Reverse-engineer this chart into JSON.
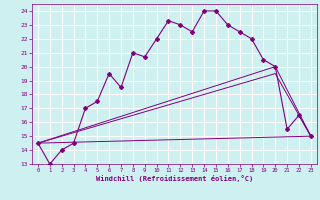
{
  "xlabel": "Windchill (Refroidissement éolien,°C)",
  "background_color": "#cff0f0",
  "grid_color": "#ffffff",
  "line_color": "#800080",
  "xlim": [
    -0.5,
    23.5
  ],
  "ylim": [
    13,
    24.5
  ],
  "yticks": [
    13,
    14,
    15,
    16,
    17,
    18,
    19,
    20,
    21,
    22,
    23,
    24
  ],
  "xticks": [
    0,
    1,
    2,
    3,
    4,
    5,
    6,
    7,
    8,
    9,
    10,
    11,
    12,
    13,
    14,
    15,
    16,
    17,
    18,
    19,
    20,
    21,
    22,
    23
  ],
  "curve1_x": [
    0,
    1,
    2,
    3,
    4,
    5,
    6,
    7,
    8,
    9,
    10,
    11,
    12,
    13,
    14,
    15,
    16,
    17,
    18,
    19,
    20,
    21,
    22,
    23
  ],
  "curve1_y": [
    14.5,
    13.0,
    14.0,
    14.5,
    17.0,
    17.5,
    19.5,
    18.5,
    21.0,
    20.7,
    22.0,
    23.3,
    23.0,
    22.5,
    24.0,
    24.0,
    23.0,
    22.5,
    22.0,
    20.5,
    20.0,
    15.5,
    16.5,
    15.0
  ],
  "curve2_x": [
    0,
    23
  ],
  "curve2_y": [
    14.5,
    15.0
  ],
  "curve3_x": [
    0,
    20,
    23
  ],
  "curve3_y": [
    14.5,
    19.5,
    15.0
  ],
  "curve4_x": [
    0,
    20,
    23
  ],
  "curve4_y": [
    14.5,
    20.0,
    15.0
  ]
}
